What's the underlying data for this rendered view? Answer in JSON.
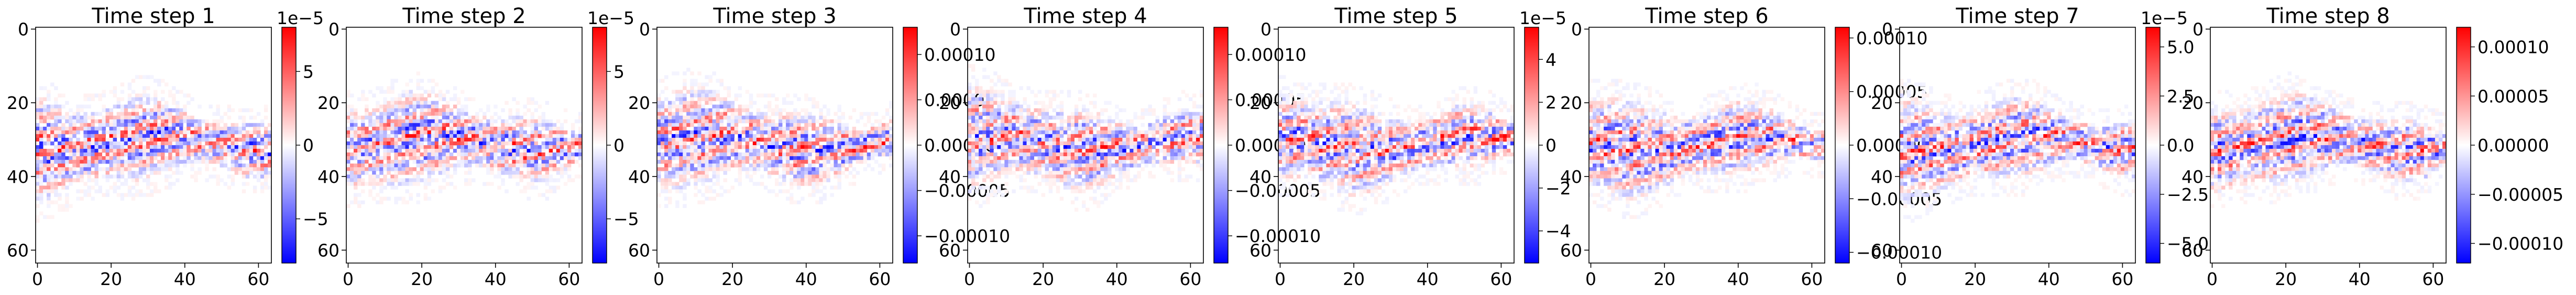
{
  "chart_data": [
    {
      "type": "heatmap",
      "title": "Time step 1",
      "xticks": [
        0,
        20,
        40,
        60
      ],
      "yticks": [
        0,
        20,
        40,
        60
      ],
      "xlim": [
        0,
        63
      ],
      "ylim": [
        63,
        0
      ],
      "colorbar": {
        "min": -8e-05,
        "max": 8e-05,
        "ticks": [
          "5",
          "0",
          "−5"
        ],
        "tick_values": [
          5e-05,
          0,
          -5e-05
        ],
        "multiplier": "1e−5"
      },
      "grid": false,
      "colormap": "bwr",
      "seed": 1
    },
    {
      "type": "heatmap",
      "title": "Time step 2",
      "xticks": [
        0,
        20,
        40,
        60
      ],
      "yticks": [
        0,
        20,
        40,
        60
      ],
      "xlim": [
        0,
        63
      ],
      "ylim": [
        63,
        0
      ],
      "colorbar": {
        "min": -8e-05,
        "max": 8e-05,
        "ticks": [
          "5",
          "0",
          "−5"
        ],
        "tick_values": [
          5e-05,
          0,
          -5e-05
        ],
        "multiplier": "1e−5"
      },
      "grid": false,
      "colormap": "bwr",
      "seed": 2
    },
    {
      "type": "heatmap",
      "title": "Time step 3",
      "xticks": [
        0,
        20,
        40,
        60
      ],
      "yticks": [
        0,
        20,
        40,
        60
      ],
      "xlim": [
        0,
        63
      ],
      "ylim": [
        63,
        0
      ],
      "colorbar": {
        "min": -0.00013,
        "max": 0.00013,
        "ticks": [
          "0.00010",
          "0.00005",
          "0.00000",
          "−0.00005",
          "−0.00010"
        ],
        "tick_values": [
          0.0001,
          5e-05,
          0,
          -5e-05,
          -0.0001
        ],
        "multiplier": ""
      },
      "grid": false,
      "colormap": "bwr",
      "seed": 3
    },
    {
      "type": "heatmap",
      "title": "Time step 4",
      "xticks": [
        0,
        20,
        40,
        60
      ],
      "yticks": [
        0,
        20,
        40,
        60
      ],
      "xlim": [
        0,
        63
      ],
      "ylim": [
        63,
        0
      ],
      "colorbar": {
        "min": -0.00013,
        "max": 0.00013,
        "ticks": [
          "0.00010",
          "0.00005",
          "0.00000",
          "−0.00005",
          "−0.00010"
        ],
        "tick_values": [
          0.0001,
          5e-05,
          0,
          -5e-05,
          -0.0001
        ],
        "multiplier": ""
      },
      "grid": false,
      "colormap": "bwr",
      "seed": 4
    },
    {
      "type": "heatmap",
      "title": "Time step 5",
      "xticks": [
        0,
        20,
        40,
        60
      ],
      "yticks": [
        0,
        20,
        40,
        60
      ],
      "xlim": [
        0,
        63
      ],
      "ylim": [
        63,
        0
      ],
      "colorbar": {
        "min": -5.5e-05,
        "max": 5.5e-05,
        "ticks": [
          "4",
          "2",
          "0",
          "−2",
          "−4"
        ],
        "tick_values": [
          4e-05,
          2e-05,
          0,
          -2e-05,
          -4e-05
        ],
        "multiplier": "1e−5"
      },
      "grid": false,
      "colormap": "bwr",
      "seed": 5
    },
    {
      "type": "heatmap",
      "title": "Time step 6",
      "xticks": [
        0,
        20,
        40,
        60
      ],
      "yticks": [
        0,
        20,
        40,
        60
      ],
      "xlim": [
        0,
        63
      ],
      "ylim": [
        63,
        0
      ],
      "colorbar": {
        "min": -0.00011,
        "max": 0.00011,
        "ticks": [
          "0.00010",
          "0.00005",
          "0.00000",
          "−0.00005",
          "−0.00010"
        ],
        "tick_values": [
          0.0001,
          5e-05,
          0,
          -5e-05,
          -0.0001
        ],
        "multiplier": ""
      },
      "grid": false,
      "colormap": "bwr",
      "seed": 6
    },
    {
      "type": "heatmap",
      "title": "Time step 7",
      "xticks": [
        0,
        20,
        40,
        60
      ],
      "yticks": [
        0,
        20,
        40,
        60
      ],
      "xlim": [
        0,
        63
      ],
      "ylim": [
        63,
        0
      ],
      "colorbar": {
        "min": -6e-05,
        "max": 6e-05,
        "ticks": [
          "5.0",
          "2.5",
          "0.0",
          "−2.5",
          "−5.0"
        ],
        "tick_values": [
          5e-05,
          2.5e-05,
          0,
          -2.5e-05,
          -5e-05
        ],
        "multiplier": "1e−5"
      },
      "grid": false,
      "colormap": "bwr",
      "seed": 7
    },
    {
      "type": "heatmap",
      "title": "Time step 8",
      "xticks": [
        0,
        20,
        40,
        60
      ],
      "yticks": [
        0,
        20,
        40,
        60
      ],
      "xlim": [
        0,
        63
      ],
      "ylim": [
        63,
        0
      ],
      "colorbar": {
        "min": -0.00012,
        "max": 0.00012,
        "ticks": [
          "0.00010",
          "0.00005",
          "0.00000",
          "−0.00005",
          "−0.00010"
        ],
        "tick_values": [
          0.0001,
          5e-05,
          0,
          -5e-05,
          -0.0001
        ],
        "multiplier": ""
      },
      "grid": false,
      "colormap": "bwr",
      "seed": 8
    }
  ]
}
